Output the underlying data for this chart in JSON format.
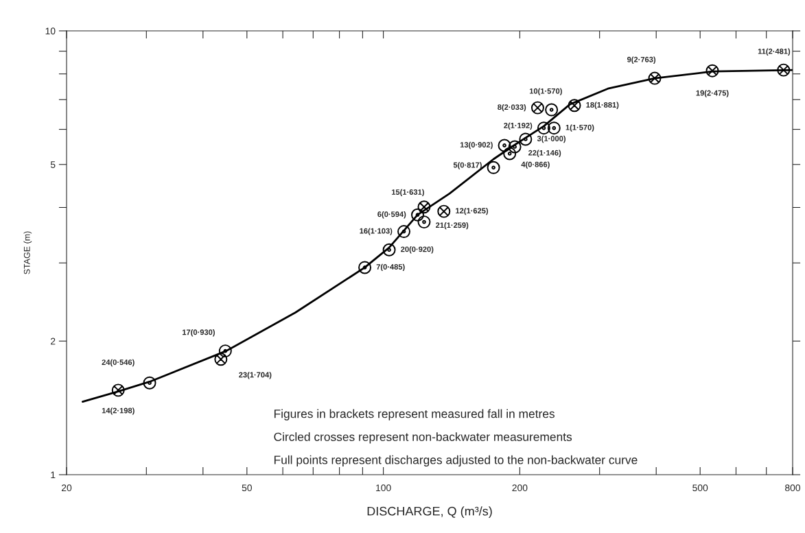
{
  "chart_data": {
    "type": "scatter",
    "xlabel": "DISCHARGE, Q (m³/s)",
    "ylabel": "STAGE (m)",
    "log": "xy",
    "grid": false,
    "legend": false,
    "xlim": [
      20,
      800
    ],
    "xticks": [
      20,
      {
        "value": 30,
        "label": null
      },
      {
        "value": 40,
        "label": null
      },
      50,
      {
        "value": 60,
        "label": null
      },
      {
        "value": 70,
        "label": null
      },
      {
        "value": 80,
        "label": null
      },
      {
        "value": 90,
        "label": null
      },
      100,
      200,
      {
        "value": 300,
        "label": null
      },
      {
        "value": 400,
        "label": null
      },
      500,
      {
        "value": 600,
        "label": null
      },
      {
        "value": 700,
        "label": null
      },
      800
    ],
    "ylim": [
      1,
      10
    ],
    "yticks": [
      1,
      2,
      {
        "value": 3,
        "label": null
      },
      {
        "value": 4,
        "label": null
      },
      5,
      {
        "value": 6,
        "label": null
      },
      {
        "value": 7,
        "label": null
      },
      {
        "value": 8,
        "label": null
      },
      {
        "value": 9,
        "label": null
      },
      10
    ],
    "series": [
      {
        "type": "line",
        "color": "#000000",
        "marker": "none",
        "x": [
          21.7,
          26,
          30.5,
          45,
          64,
          91,
          103,
          119,
          140,
          175,
          193,
          226,
          258,
          313,
          397,
          532,
          800
        ],
        "values": [
          1.46,
          1.54,
          1.62,
          1.9,
          2.32,
          2.93,
          3.25,
          3.85,
          4.3,
          5.14,
          5.5,
          6.1,
          6.83,
          7.41,
          7.82,
          8.1,
          8.16
        ]
      },
      {
        "color": "#000000",
        "marker": "circle",
        "x": [
          235,
          226,
          238,
          206,
          185,
          195,
          190,
          175,
          119,
          123,
          111,
          103,
          91,
          30.5,
          44.8
        ],
        "values": [
          6.64,
          6.04,
          6.04,
          5.7,
          5.52,
          5.48,
          5.29,
          4.92,
          3.85,
          3.71,
          3.53,
          3.21,
          2.93,
          1.61,
          1.9
        ]
      },
      {
        "color": "#000000",
        "marker": "cross",
        "x": [
          397,
          532,
          764,
          219,
          264,
          123,
          136,
          26,
          43.8
        ],
        "values": [
          7.82,
          8.13,
          8.16,
          6.71,
          6.79,
          4.01,
          3.92,
          1.55,
          1.82
        ]
      }
    ],
    "annotations": [
      {
        "text": "9(2·763)",
        "x": 397,
        "y": 7.82
      },
      {
        "text": "19(2·475)",
        "x": 532,
        "y": 8.13
      },
      {
        "text": "11(2·481)",
        "x": 764,
        "y": 8.16
      },
      {
        "text": "10(1·570)",
        "x": 235,
        "y": 6.64
      },
      {
        "text": "8(2·033)",
        "x": 219,
        "y": 6.71
      },
      {
        "text": "18(1·881)",
        "x": 264,
        "y": 6.79
      },
      {
        "text": "2(1·192)",
        "x": 226,
        "y": 6.04
      },
      {
        "text": "1(1·570)",
        "x": 238,
        "y": 6.04
      },
      {
        "text": "3(1·000)",
        "x": 206,
        "y": 5.7
      },
      {
        "text": "13(0·902)",
        "x": 185,
        "y": 5.52
      },
      {
        "text": "22(1·146)",
        "x": 195,
        "y": 5.48
      },
      {
        "text": "4(0·866)",
        "x": 190,
        "y": 5.29
      },
      {
        "text": "5(0·817)",
        "x": 175,
        "y": 4.92
      },
      {
        "text": "15(1·631)",
        "x": 123,
        "y": 4.01
      },
      {
        "text": "6(0·594)",
        "x": 119,
        "y": 3.85
      },
      {
        "text": "12(1·625)",
        "x": 136,
        "y": 3.92
      },
      {
        "text": "21(1·259)",
        "x": 123,
        "y": 3.71
      },
      {
        "text": "16(1·103)",
        "x": 111,
        "y": 3.53
      },
      {
        "text": "20(0·920)",
        "x": 103,
        "y": 3.21
      },
      {
        "text": "7(0·485)",
        "x": 91,
        "y": 2.93
      },
      {
        "text": "14(2·198)",
        "x": 26,
        "y": 1.55
      },
      {
        "text": "24(0·546)",
        "x": 30.5,
        "y": 1.61
      },
      {
        "text": "17(0·930)",
        "x": 44.8,
        "y": 1.9
      },
      {
        "text": "23(1·704)",
        "x": 43.8,
        "y": 1.82
      },
      "Figures in brackets represent measured fall in metres",
      "Circled crosses represent non-backwater measurements",
      "Full points represent discharges adjusted to the non-backwater curve"
    ]
  }
}
